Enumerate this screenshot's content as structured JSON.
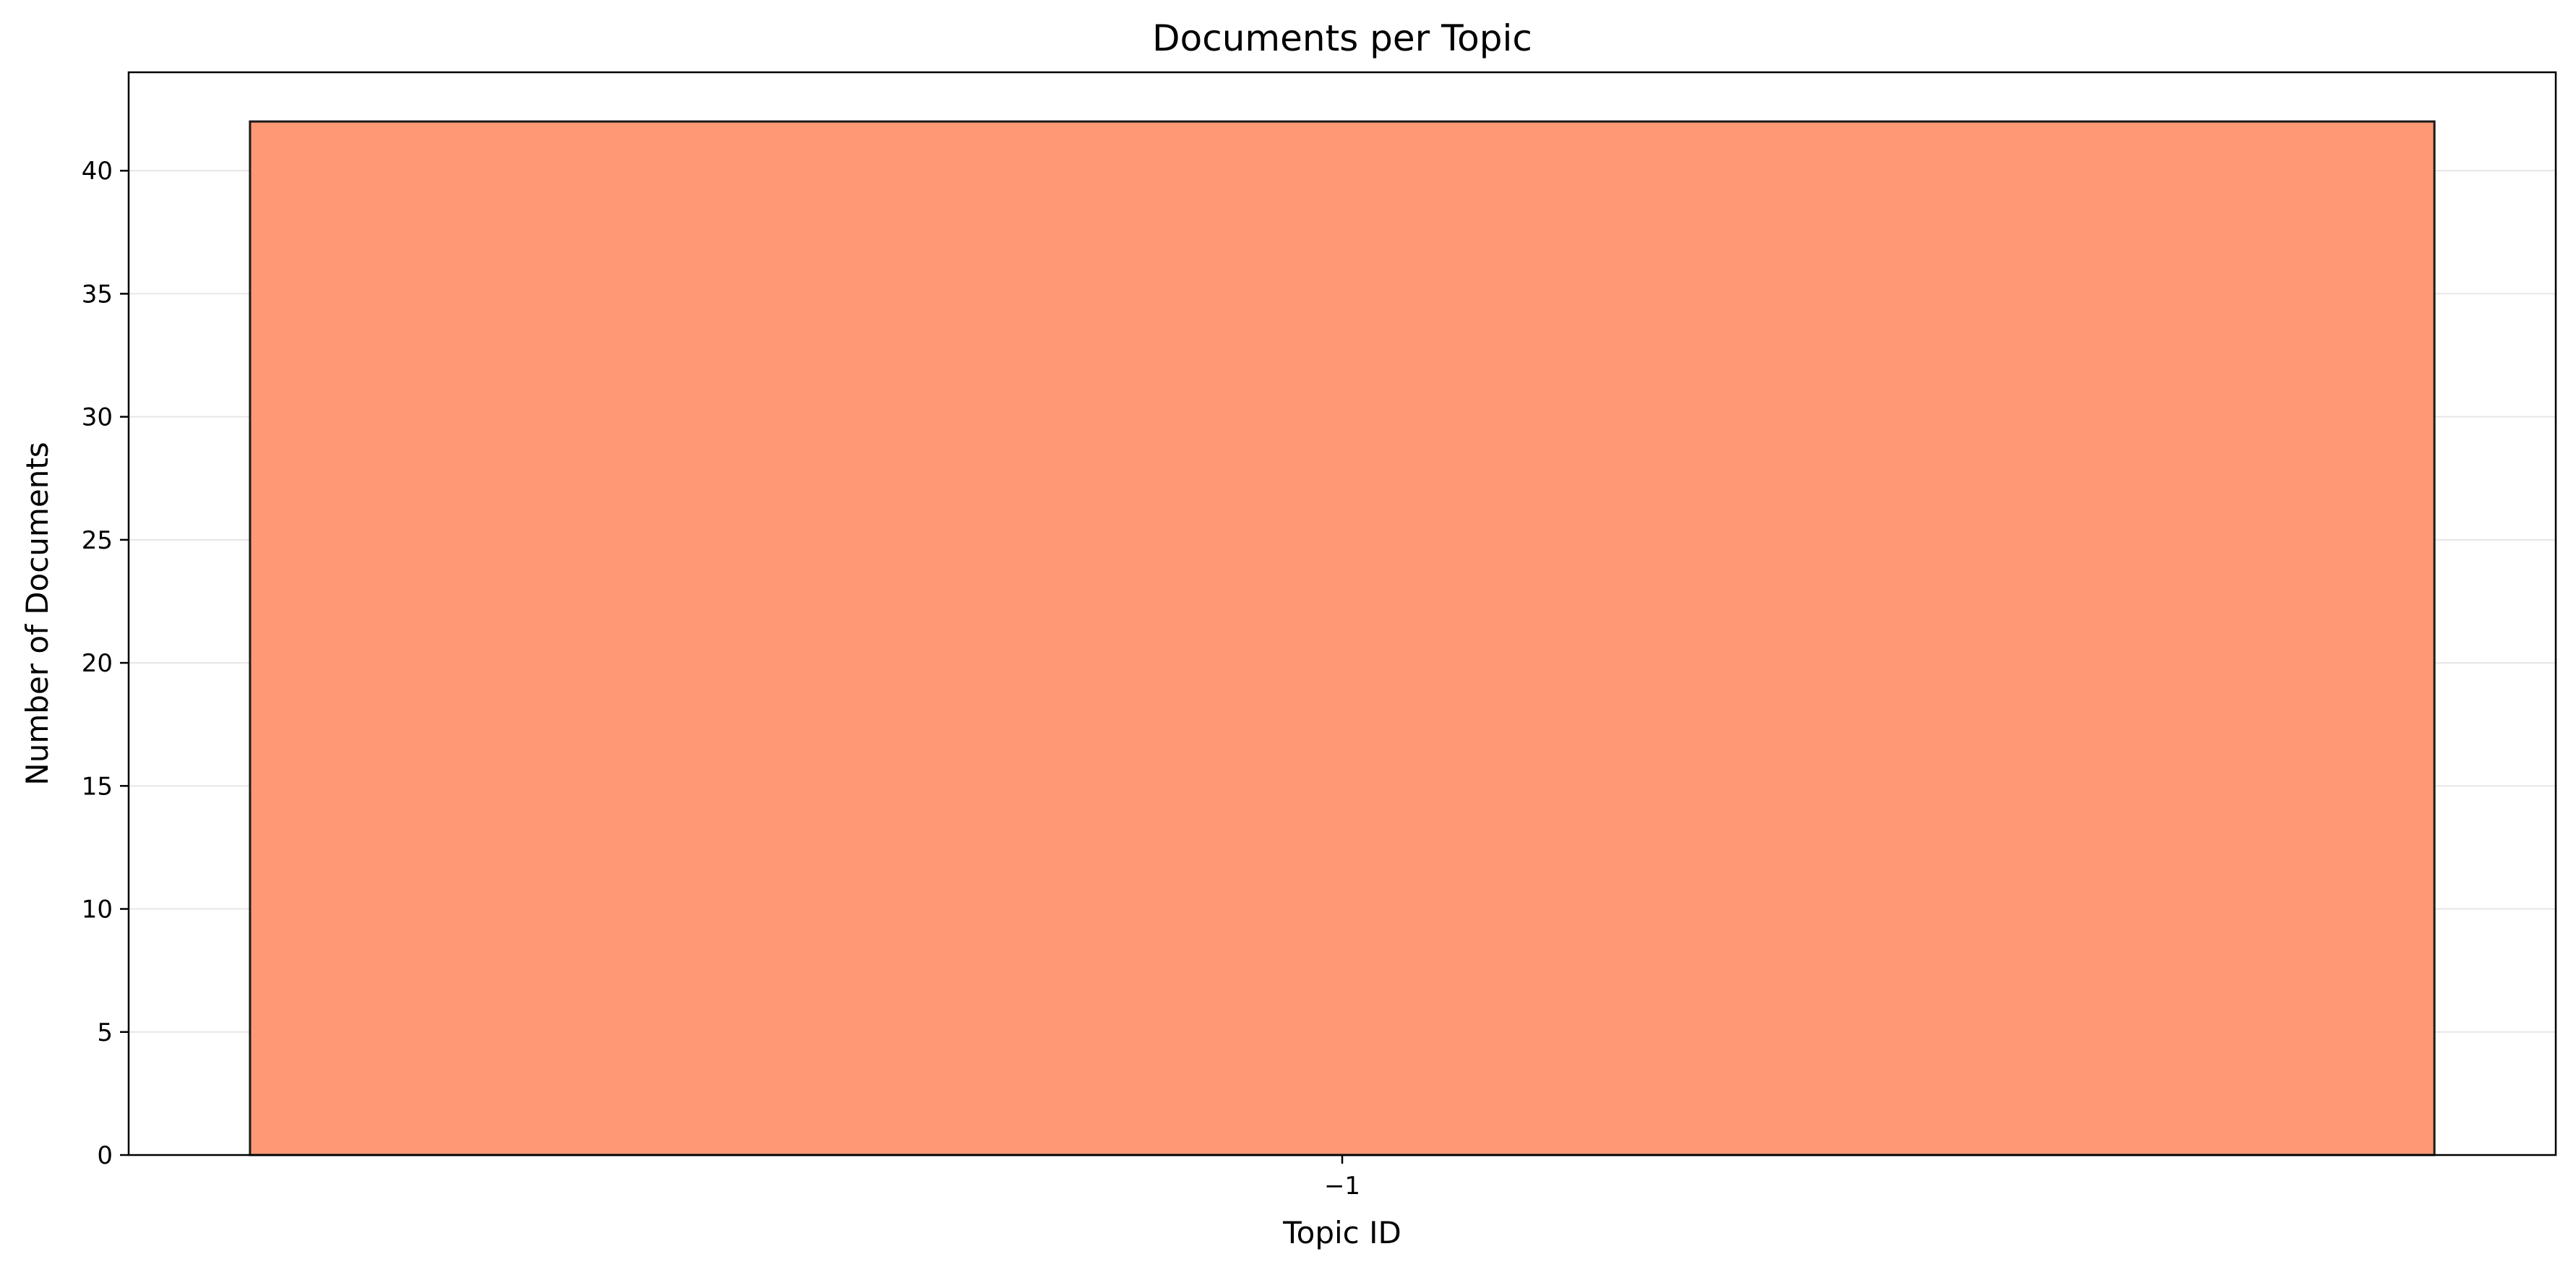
{
  "chart_data": {
    "type": "bar",
    "title": "Documents per Topic",
    "xlabel": "Topic ID",
    "ylabel": "Number of Documents",
    "categories": [
      "−1"
    ],
    "values": [
      42
    ],
    "ylim": [
      0,
      44
    ],
    "yticks": [
      "0",
      "5",
      "10",
      "15",
      "20",
      "25",
      "30",
      "35",
      "40"
    ],
    "grid": "horizontal",
    "bar_color": "#ff9875",
    "bar_edge_color": "#1a1a1a"
  }
}
